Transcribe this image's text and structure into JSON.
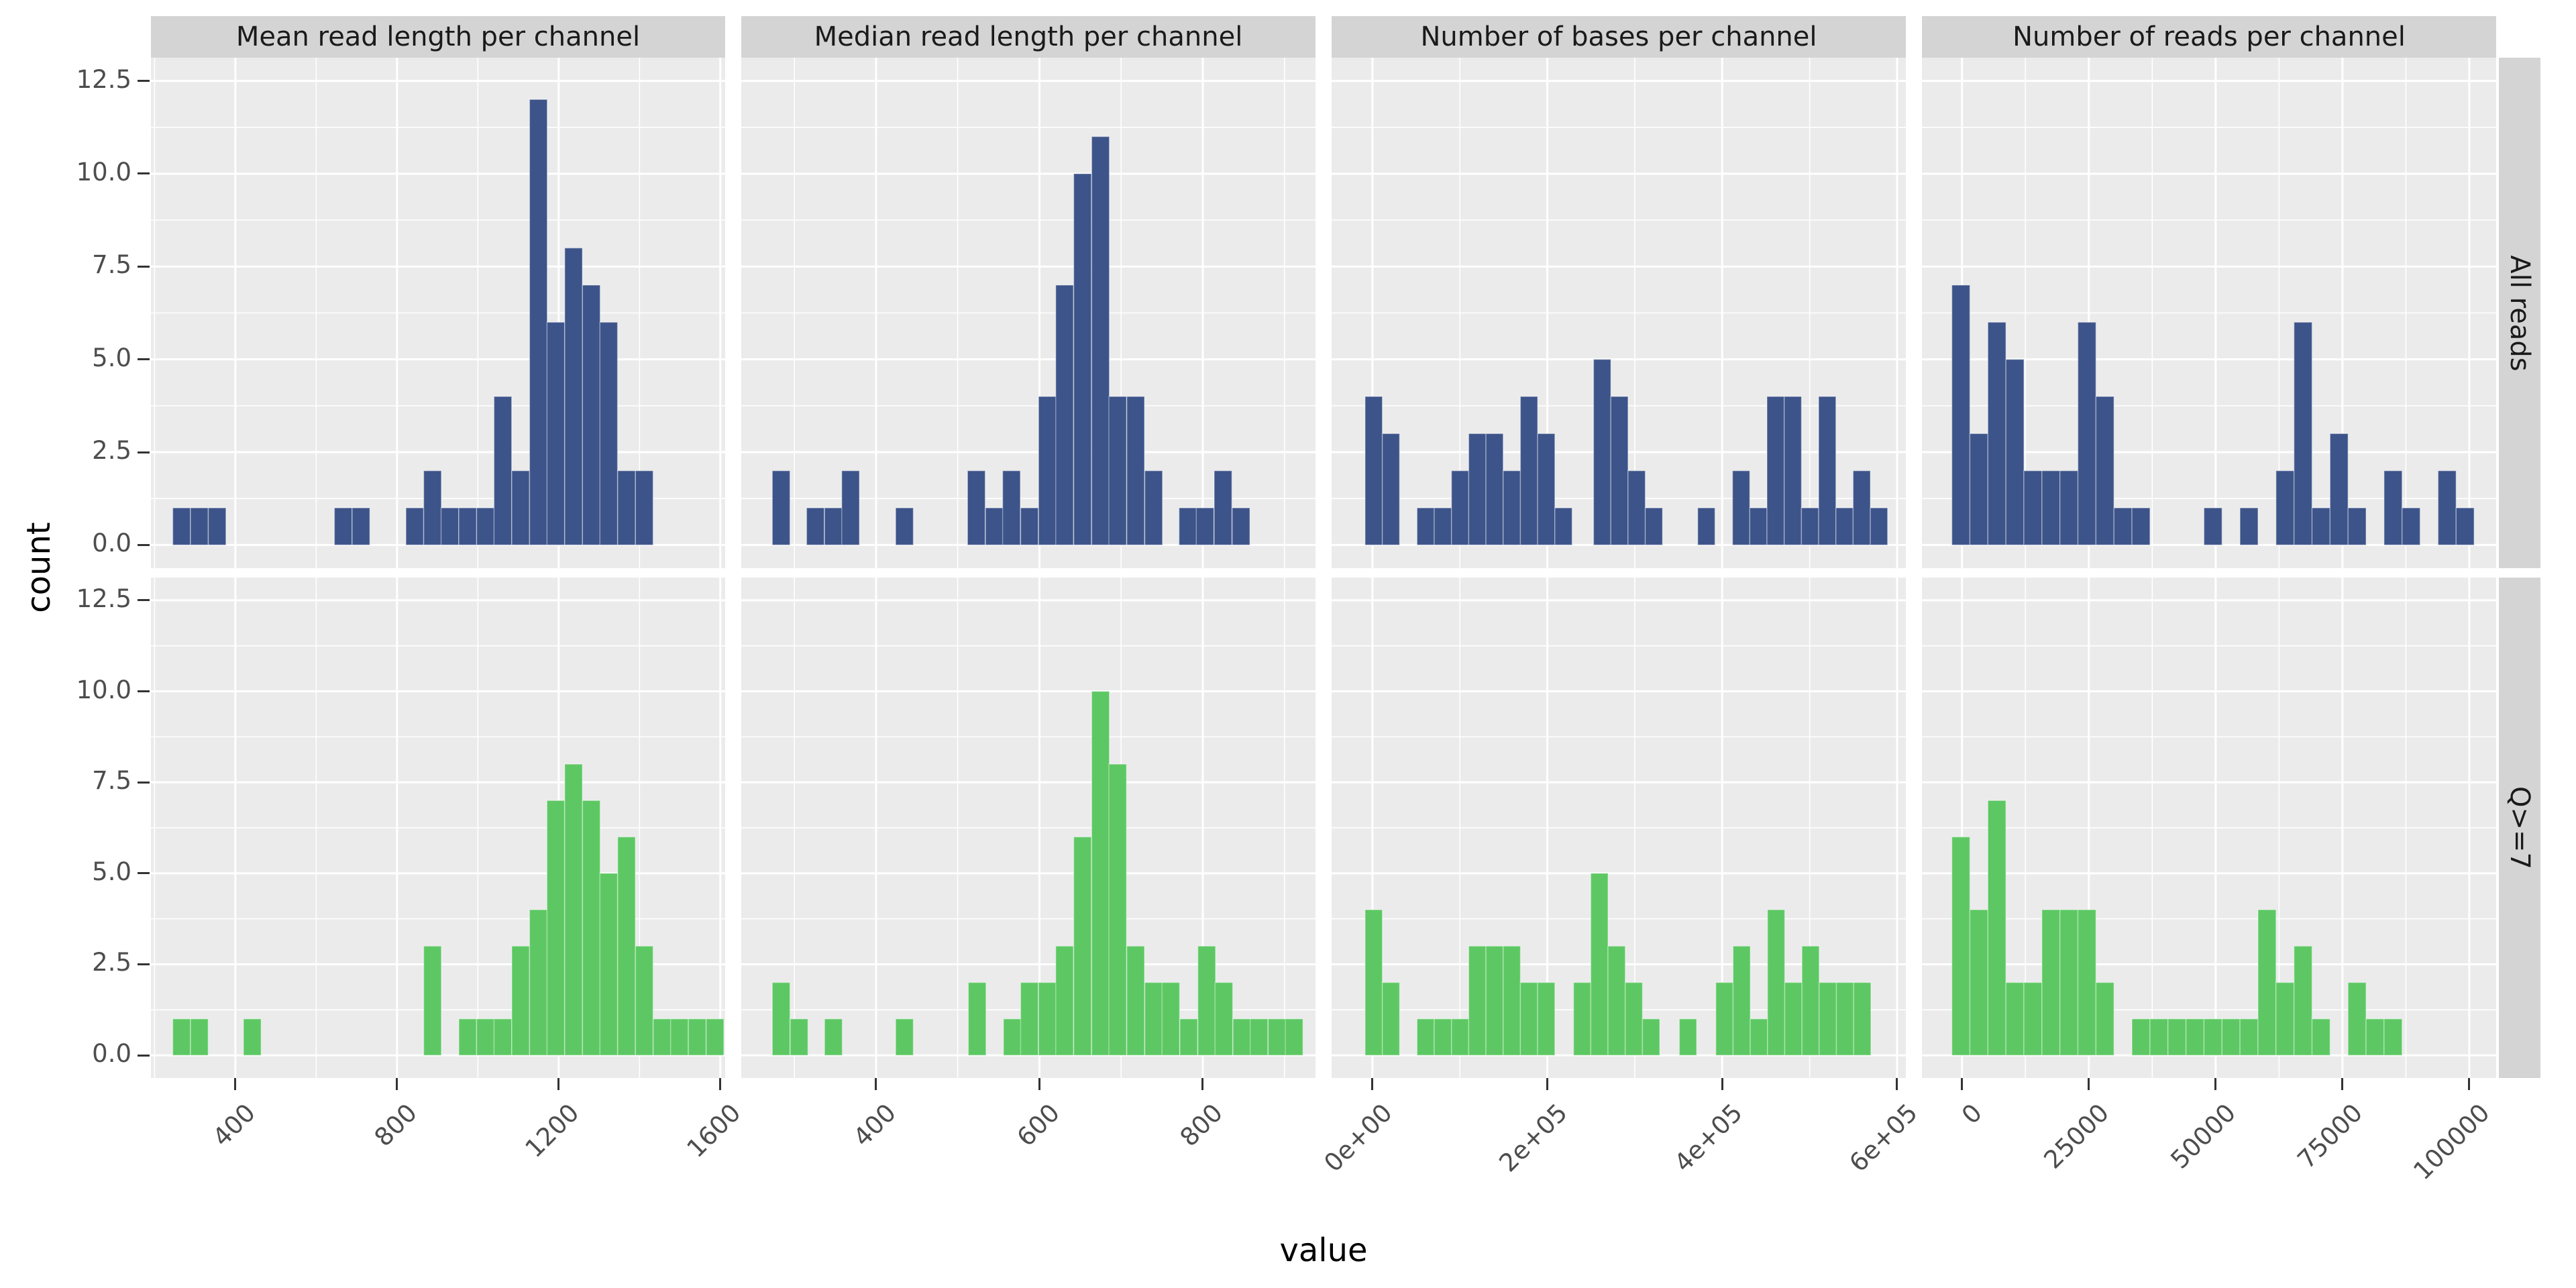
{
  "page": {
    "background": "#FFFFFF"
  },
  "style": {
    "panel_bg": "#EBEBEB",
    "strip_bg": "#D4D4D4",
    "grid_color": "#FFFFFF",
    "tick_label_color": "#4D4D4D",
    "strip_text_color": "#1A1A1A",
    "axis_title_color": "#000000",
    "tick_mark_color": "#333333",
    "bar_colors": {
      "all_reads": "#3D548A",
      "q7": "#5DC863"
    }
  },
  "chart_data": {
    "type": "bar",
    "subtype": "faceted-histogram-grid",
    "title": "",
    "xlabel": "value",
    "ylabel": "count",
    "grid": true,
    "legend_position": "none",
    "y_axis": {
      "lim": [
        -0.625,
        13.125
      ],
      "major_ticks": [
        0,
        2.5,
        5,
        7.5,
        10,
        12.5
      ],
      "tick_labels": [
        "0.0",
        "2.5",
        "5.0",
        "7.5",
        "10.0",
        "12.5"
      ],
      "minor_ticks": [
        1.25,
        3.75,
        6.25,
        8.75,
        11.25
      ]
    },
    "row_facets": [
      {
        "label": "All reads",
        "color": "#3D548A"
      },
      {
        "label": "Q>=7",
        "color": "#5DC863"
      }
    ],
    "col_facets": [
      {
        "label": "Mean read length per channel",
        "domain": [
          191,
          1612
        ],
        "bin_width": 43.6,
        "ticks": [
          {
            "v": 400,
            "label": "400"
          },
          {
            "v": 800,
            "label": "800"
          },
          {
            "v": 1200,
            "label": "1200"
          },
          {
            "v": 1600,
            "label": "1600"
          }
        ]
      },
      {
        "label": "Median read length per channel",
        "domain": [
          235,
          938
        ],
        "bin_width": 21.6,
        "ticks": [
          {
            "v": 400,
            "label": "400"
          },
          {
            "v": 600,
            "label": "600"
          },
          {
            "v": 800,
            "label": "800"
          }
        ]
      },
      {
        "label": "Number of bases per channel",
        "domain": [
          -46700,
          610000
        ],
        "bin_width": 19700,
        "ticks": [
          {
            "v": 0,
            "label": "0e+00"
          },
          {
            "v": 200000,
            "label": "2e+05"
          },
          {
            "v": 400000,
            "label": "4e+05"
          },
          {
            "v": 600000,
            "label": "6e+05"
          }
        ]
      },
      {
        "label": "Number of reads per channel",
        "domain": [
          -7900,
          105300
        ],
        "bin_width": 3550,
        "ticks": [
          {
            "v": 0,
            "label": "0"
          },
          {
            "v": 25000,
            "label": "25000"
          },
          {
            "v": 50000,
            "label": "50000"
          },
          {
            "v": 75000,
            "label": "75000"
          },
          {
            "v": 100000,
            "label": "100000"
          }
        ]
      }
    ],
    "panels": [
      {
        "row": 0,
        "col": 0,
        "bars": [
          [
            245,
            1
          ],
          [
            289,
            1
          ],
          [
            333,
            1
          ],
          [
            645,
            1
          ],
          [
            689,
            1
          ],
          [
            822,
            1
          ],
          [
            866,
            2
          ],
          [
            909,
            1
          ],
          [
            953,
            1
          ],
          [
            997,
            1
          ],
          [
            1040,
            4
          ],
          [
            1084,
            2
          ],
          [
            1128,
            12
          ],
          [
            1171,
            6
          ],
          [
            1215,
            8
          ],
          [
            1259,
            7
          ],
          [
            1302,
            6
          ],
          [
            1346,
            2
          ],
          [
            1390,
            2
          ]
        ]
      },
      {
        "row": 1,
        "col": 0,
        "bars": [
          [
            245,
            1
          ],
          [
            289,
            1
          ],
          [
            420,
            1
          ],
          [
            866,
            3
          ],
          [
            953,
            1
          ],
          [
            997,
            1
          ],
          [
            1040,
            1
          ],
          [
            1084,
            3
          ],
          [
            1128,
            4
          ],
          [
            1171,
            7
          ],
          [
            1215,
            8
          ],
          [
            1259,
            7
          ],
          [
            1302,
            5
          ],
          [
            1346,
            6
          ],
          [
            1390,
            3
          ],
          [
            1434,
            1
          ],
          [
            1477,
            1
          ],
          [
            1521,
            1
          ],
          [
            1565,
            1
          ]
        ]
      },
      {
        "row": 0,
        "col": 1,
        "bars": [
          [
            273,
            2
          ],
          [
            315,
            1
          ],
          [
            337,
            1
          ],
          [
            358,
            2
          ],
          [
            424,
            1
          ],
          [
            512,
            2
          ],
          [
            534,
            1
          ],
          [
            555,
            2
          ],
          [
            577,
            1
          ],
          [
            599,
            4
          ],
          [
            620,
            7
          ],
          [
            642,
            10
          ],
          [
            664,
            11
          ],
          [
            685,
            4
          ],
          [
            707,
            4
          ],
          [
            729,
            2
          ],
          [
            771,
            1
          ],
          [
            792,
            1
          ],
          [
            814,
            2
          ],
          [
            836,
            1
          ]
        ]
      },
      {
        "row": 1,
        "col": 1,
        "bars": [
          [
            273,
            2
          ],
          [
            295,
            1
          ],
          [
            337,
            1
          ],
          [
            424,
            1
          ],
          [
            513,
            2
          ],
          [
            556,
            1
          ],
          [
            577,
            2
          ],
          [
            599,
            2
          ],
          [
            620,
            3
          ],
          [
            642,
            6
          ],
          [
            664,
            10
          ],
          [
            685,
            8
          ],
          [
            707,
            3
          ],
          [
            729,
            2
          ],
          [
            750,
            2
          ],
          [
            772,
            1
          ],
          [
            794,
            3
          ],
          [
            815,
            2
          ],
          [
            837,
            1
          ],
          [
            858,
            1
          ],
          [
            880,
            1
          ],
          [
            901,
            1
          ]
        ]
      },
      {
        "row": 0,
        "col": 2,
        "bars": [
          [
            -8400,
            4
          ],
          [
            11300,
            3
          ],
          [
            51000,
            1
          ],
          [
            70700,
            1
          ],
          [
            90400,
            2
          ],
          [
            110100,
            3
          ],
          [
            129800,
            3
          ],
          [
            149500,
            2
          ],
          [
            169200,
            4
          ],
          [
            188900,
            3
          ],
          [
            208600,
            1
          ],
          [
            252900,
            5
          ],
          [
            272600,
            4
          ],
          [
            292300,
            2
          ],
          [
            312000,
            1
          ],
          [
            372000,
            1
          ],
          [
            411800,
            2
          ],
          [
            431500,
            1
          ],
          [
            451200,
            4
          ],
          [
            470900,
            4
          ],
          [
            490600,
            1
          ],
          [
            510300,
            4
          ],
          [
            530000,
            1
          ],
          [
            549700,
            2
          ],
          [
            569400,
            1
          ]
        ]
      },
      {
        "row": 1,
        "col": 2,
        "bars": [
          [
            -8400,
            4
          ],
          [
            11300,
            2
          ],
          [
            51000,
            1
          ],
          [
            70700,
            1
          ],
          [
            90400,
            1
          ],
          [
            110100,
            3
          ],
          [
            129800,
            3
          ],
          [
            149500,
            3
          ],
          [
            169200,
            2
          ],
          [
            188900,
            2
          ],
          [
            230000,
            2
          ],
          [
            249700,
            5
          ],
          [
            269400,
            3
          ],
          [
            289100,
            2
          ],
          [
            308800,
            1
          ],
          [
            351000,
            1
          ],
          [
            392700,
            2
          ],
          [
            412400,
            3
          ],
          [
            432100,
            1
          ],
          [
            451800,
            4
          ],
          [
            471500,
            2
          ],
          [
            491200,
            3
          ],
          [
            510900,
            2
          ],
          [
            530600,
            2
          ],
          [
            550300,
            2
          ]
        ]
      },
      {
        "row": 0,
        "col": 3,
        "bars": [
          [
            -2000,
            7
          ],
          [
            1550,
            3
          ],
          [
            5100,
            6
          ],
          [
            8650,
            5
          ],
          [
            12200,
            2
          ],
          [
            15750,
            2
          ],
          [
            19300,
            2
          ],
          [
            22850,
            6
          ],
          [
            26400,
            4
          ],
          [
            29950,
            1
          ],
          [
            33500,
            1
          ],
          [
            47700,
            1
          ],
          [
            54800,
            1
          ],
          [
            61900,
            2
          ],
          [
            65450,
            6
          ],
          [
            69000,
            1
          ],
          [
            72550,
            3
          ],
          [
            76100,
            1
          ],
          [
            83200,
            2
          ],
          [
            86750,
            1
          ],
          [
            93850,
            2
          ],
          [
            97400,
            1
          ]
        ]
      },
      {
        "row": 1,
        "col": 3,
        "bars": [
          [
            -2000,
            6
          ],
          [
            1550,
            4
          ],
          [
            5100,
            7
          ],
          [
            8650,
            2
          ],
          [
            12200,
            2
          ],
          [
            15750,
            4
          ],
          [
            19300,
            4
          ],
          [
            22850,
            4
          ],
          [
            26400,
            2
          ],
          [
            33500,
            1
          ],
          [
            37050,
            1
          ],
          [
            40600,
            1
          ],
          [
            44150,
            1
          ],
          [
            47700,
            1
          ],
          [
            51250,
            1
          ],
          [
            54800,
            1
          ],
          [
            58350,
            4
          ],
          [
            61900,
            2
          ],
          [
            65450,
            3
          ],
          [
            69000,
            1
          ],
          [
            76100,
            2
          ],
          [
            79650,
            1
          ],
          [
            83200,
            1
          ]
        ]
      }
    ]
  }
}
